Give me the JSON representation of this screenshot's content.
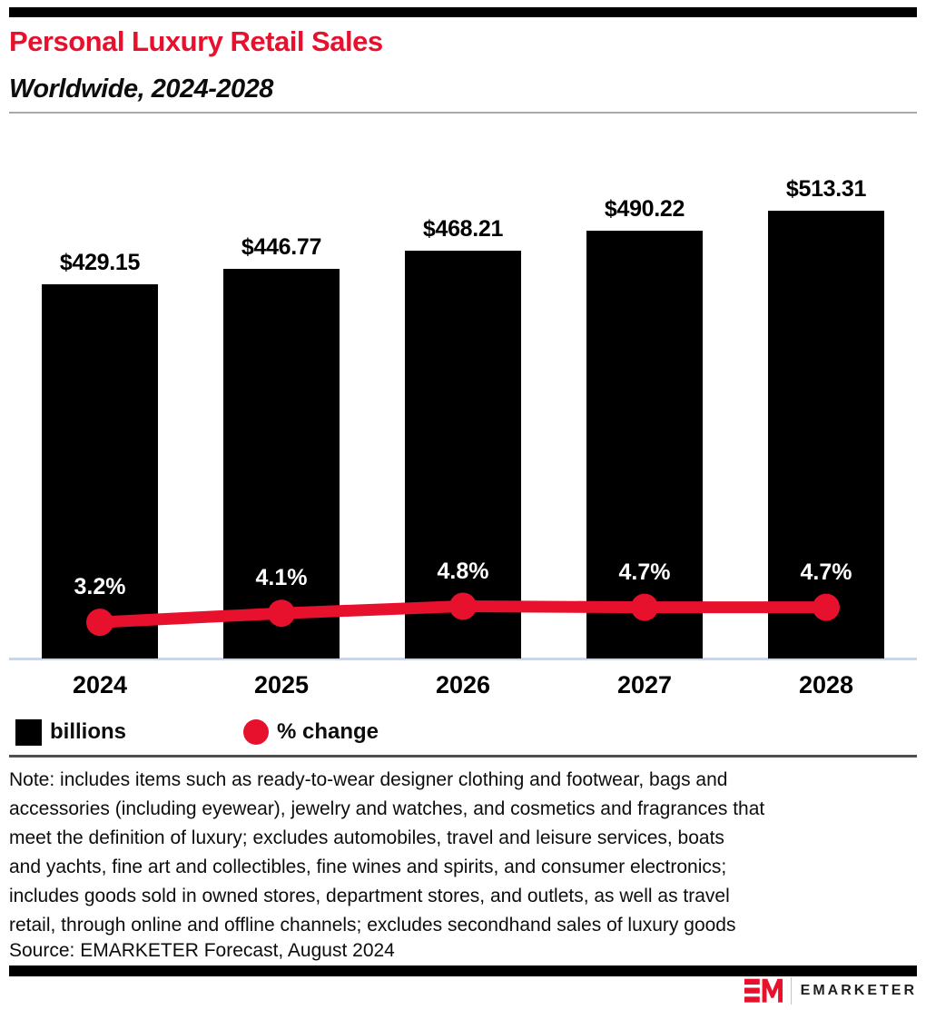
{
  "header": {
    "title": "Personal Luxury Retail Sales",
    "subtitle": "Worldwide, 2024-2028"
  },
  "chart_data": {
    "type": "bar",
    "subtype": "bar-with-line-combo",
    "title": "Personal Luxury Retail Sales",
    "subtitle": "Worldwide, 2024-2028",
    "categories": [
      "2024",
      "2025",
      "2026",
      "2027",
      "2028"
    ],
    "series": [
      {
        "name": "billions",
        "type": "bar",
        "color": "#000000",
        "values": [
          429.15,
          446.77,
          468.21,
          490.22,
          513.31
        ],
        "labels": [
          "$429.15",
          "$446.77",
          "$468.21",
          "$490.22",
          "$513.31"
        ]
      },
      {
        "name": "% change",
        "type": "line",
        "color": "#e8112d",
        "values": [
          3.2,
          4.1,
          4.8,
          4.7,
          4.7
        ],
        "labels": [
          "3.2%",
          "4.1%",
          "4.8%",
          "4.7%",
          "4.7%"
        ]
      }
    ],
    "legend": [
      {
        "label": "billions",
        "swatch": "square",
        "color": "#000000"
      },
      {
        "label": "% change",
        "swatch": "circle",
        "color": "#e8112d"
      }
    ],
    "xlabel": "",
    "ylabel": "",
    "grid": false,
    "legend_position": "bottom-left"
  },
  "note_lines": [
    "Note: includes items such as ready-to-wear designer clothing and footwear, bags and",
    "accessories (including eyewear), jewelry and watches, and cosmetics and fragrances that",
    "meet the definition of luxury; excludes automobiles, travel and leisure services, boats",
    "and yachts, fine art and collectibles, fine wines and spirits, and consumer electronics;",
    "includes goods sold in owned stores, department stores, and outlets, as well as travel",
    "retail, through online and offline channels; excludes secondhand sales of luxury goods"
  ],
  "note": "Note: includes items such as ready-to-wear designer clothing and footwear, bags and accessories (including eyewear), jewelry and watches, and cosmetics and fragrances that meet the definition of luxury; excludes automobiles, travel and leisure services, boats and yachts, fine art and collectibles, fine wines and spirits, and consumer electronics; includes goods sold in owned stores, department stores, and outlets, as well as travel retail, through online and offline channels; excludes secondhand sales of luxury goods",
  "source": "Source: EMARKETER Forecast, August 2024",
  "footer": {
    "brand": "EMARKETER"
  },
  "colors": {
    "brand_red": "#e8112d",
    "bar_black": "#000000",
    "axis_line": "#ccd5e8",
    "header_divider": "#a8a8a8",
    "legend_divider": "#4f4f4f"
  }
}
